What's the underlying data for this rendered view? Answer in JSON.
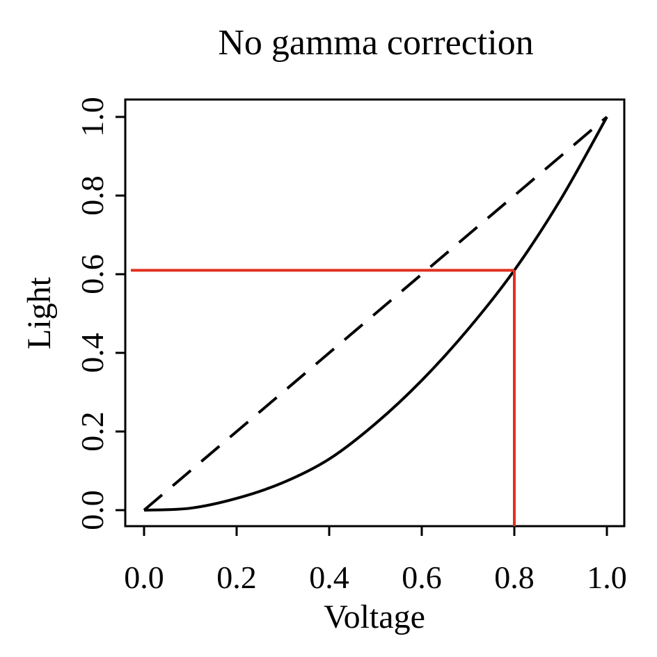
{
  "chart_data": {
    "type": "line",
    "title": "No gamma correction",
    "xlabel": "Voltage",
    "ylabel": "Light",
    "xlim": [
      -0.04,
      1.04
    ],
    "ylim": [
      -0.04,
      1.04
    ],
    "xticks": [
      "0.0",
      "0.2",
      "0.4",
      "0.6",
      "0.8",
      "1.0"
    ],
    "yticks": [
      "0.0",
      "0.2",
      "0.4",
      "0.6",
      "0.8",
      "1.0"
    ],
    "grid": false,
    "legend": "none",
    "series": [
      {
        "style": "solid",
        "color": "#000000",
        "x": [
          0.0,
          0.1,
          0.2,
          0.3,
          0.4,
          0.5,
          0.6,
          0.7,
          0.8,
          0.9,
          1.0
        ],
        "y": [
          0.0,
          0.005,
          0.03,
          0.07,
          0.13,
          0.22,
          0.33,
          0.46,
          0.61,
          0.79,
          1.0
        ]
      },
      {
        "style": "dashed",
        "color": "#000000",
        "x": [
          0.0,
          1.0
        ],
        "y": [
          0.0,
          1.0
        ]
      }
    ],
    "annotations": [
      {
        "type": "reference-lines",
        "color": "#e03020",
        "x": 0.8,
        "y": 0.61
      }
    ]
  }
}
